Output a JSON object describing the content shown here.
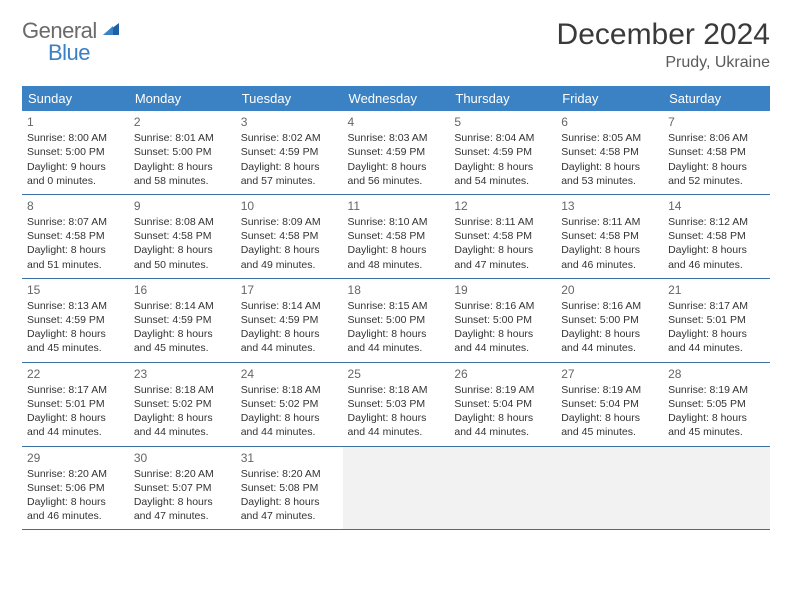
{
  "brand": {
    "part1": "General",
    "part2": "Blue"
  },
  "title": "December 2024",
  "location": "Prudy, Ukraine",
  "colors": {
    "header_bg": "#3b82c4",
    "header_text": "#ffffff",
    "row_border": "#3b6fa0",
    "empty_bg": "#f2f2f2",
    "page_bg": "#ffffff",
    "text": "#333333",
    "daynum": "#666666",
    "brand_gray": "#6a6a6a",
    "brand_blue": "#3b7fc4"
  },
  "typography": {
    "title_fontsize": 30,
    "location_fontsize": 16,
    "header_fontsize": 13,
    "cell_fontsize": 10.5,
    "daynum_fontsize": 12
  },
  "day_headers": [
    "Sunday",
    "Monday",
    "Tuesday",
    "Wednesday",
    "Thursday",
    "Friday",
    "Saturday"
  ],
  "weeks": [
    [
      {
        "n": "1",
        "sr": "Sunrise: 8:00 AM",
        "ss": "Sunset: 5:00 PM",
        "d1": "Daylight: 9 hours",
        "d2": "and 0 minutes."
      },
      {
        "n": "2",
        "sr": "Sunrise: 8:01 AM",
        "ss": "Sunset: 5:00 PM",
        "d1": "Daylight: 8 hours",
        "d2": "and 58 minutes."
      },
      {
        "n": "3",
        "sr": "Sunrise: 8:02 AM",
        "ss": "Sunset: 4:59 PM",
        "d1": "Daylight: 8 hours",
        "d2": "and 57 minutes."
      },
      {
        "n": "4",
        "sr": "Sunrise: 8:03 AM",
        "ss": "Sunset: 4:59 PM",
        "d1": "Daylight: 8 hours",
        "d2": "and 56 minutes."
      },
      {
        "n": "5",
        "sr": "Sunrise: 8:04 AM",
        "ss": "Sunset: 4:59 PM",
        "d1": "Daylight: 8 hours",
        "d2": "and 54 minutes."
      },
      {
        "n": "6",
        "sr": "Sunrise: 8:05 AM",
        "ss": "Sunset: 4:58 PM",
        "d1": "Daylight: 8 hours",
        "d2": "and 53 minutes."
      },
      {
        "n": "7",
        "sr": "Sunrise: 8:06 AM",
        "ss": "Sunset: 4:58 PM",
        "d1": "Daylight: 8 hours",
        "d2": "and 52 minutes."
      }
    ],
    [
      {
        "n": "8",
        "sr": "Sunrise: 8:07 AM",
        "ss": "Sunset: 4:58 PM",
        "d1": "Daylight: 8 hours",
        "d2": "and 51 minutes."
      },
      {
        "n": "9",
        "sr": "Sunrise: 8:08 AM",
        "ss": "Sunset: 4:58 PM",
        "d1": "Daylight: 8 hours",
        "d2": "and 50 minutes."
      },
      {
        "n": "10",
        "sr": "Sunrise: 8:09 AM",
        "ss": "Sunset: 4:58 PM",
        "d1": "Daylight: 8 hours",
        "d2": "and 49 minutes."
      },
      {
        "n": "11",
        "sr": "Sunrise: 8:10 AM",
        "ss": "Sunset: 4:58 PM",
        "d1": "Daylight: 8 hours",
        "d2": "and 48 minutes."
      },
      {
        "n": "12",
        "sr": "Sunrise: 8:11 AM",
        "ss": "Sunset: 4:58 PM",
        "d1": "Daylight: 8 hours",
        "d2": "and 47 minutes."
      },
      {
        "n": "13",
        "sr": "Sunrise: 8:11 AM",
        "ss": "Sunset: 4:58 PM",
        "d1": "Daylight: 8 hours",
        "d2": "and 46 minutes."
      },
      {
        "n": "14",
        "sr": "Sunrise: 8:12 AM",
        "ss": "Sunset: 4:58 PM",
        "d1": "Daylight: 8 hours",
        "d2": "and 46 minutes."
      }
    ],
    [
      {
        "n": "15",
        "sr": "Sunrise: 8:13 AM",
        "ss": "Sunset: 4:59 PM",
        "d1": "Daylight: 8 hours",
        "d2": "and 45 minutes."
      },
      {
        "n": "16",
        "sr": "Sunrise: 8:14 AM",
        "ss": "Sunset: 4:59 PM",
        "d1": "Daylight: 8 hours",
        "d2": "and 45 minutes."
      },
      {
        "n": "17",
        "sr": "Sunrise: 8:14 AM",
        "ss": "Sunset: 4:59 PM",
        "d1": "Daylight: 8 hours",
        "d2": "and 44 minutes."
      },
      {
        "n": "18",
        "sr": "Sunrise: 8:15 AM",
        "ss": "Sunset: 5:00 PM",
        "d1": "Daylight: 8 hours",
        "d2": "and 44 minutes."
      },
      {
        "n": "19",
        "sr": "Sunrise: 8:16 AM",
        "ss": "Sunset: 5:00 PM",
        "d1": "Daylight: 8 hours",
        "d2": "and 44 minutes."
      },
      {
        "n": "20",
        "sr": "Sunrise: 8:16 AM",
        "ss": "Sunset: 5:00 PM",
        "d1": "Daylight: 8 hours",
        "d2": "and 44 minutes."
      },
      {
        "n": "21",
        "sr": "Sunrise: 8:17 AM",
        "ss": "Sunset: 5:01 PM",
        "d1": "Daylight: 8 hours",
        "d2": "and 44 minutes."
      }
    ],
    [
      {
        "n": "22",
        "sr": "Sunrise: 8:17 AM",
        "ss": "Sunset: 5:01 PM",
        "d1": "Daylight: 8 hours",
        "d2": "and 44 minutes."
      },
      {
        "n": "23",
        "sr": "Sunrise: 8:18 AM",
        "ss": "Sunset: 5:02 PM",
        "d1": "Daylight: 8 hours",
        "d2": "and 44 minutes."
      },
      {
        "n": "24",
        "sr": "Sunrise: 8:18 AM",
        "ss": "Sunset: 5:02 PM",
        "d1": "Daylight: 8 hours",
        "d2": "and 44 minutes."
      },
      {
        "n": "25",
        "sr": "Sunrise: 8:18 AM",
        "ss": "Sunset: 5:03 PM",
        "d1": "Daylight: 8 hours",
        "d2": "and 44 minutes."
      },
      {
        "n": "26",
        "sr": "Sunrise: 8:19 AM",
        "ss": "Sunset: 5:04 PM",
        "d1": "Daylight: 8 hours",
        "d2": "and 44 minutes."
      },
      {
        "n": "27",
        "sr": "Sunrise: 8:19 AM",
        "ss": "Sunset: 5:04 PM",
        "d1": "Daylight: 8 hours",
        "d2": "and 45 minutes."
      },
      {
        "n": "28",
        "sr": "Sunrise: 8:19 AM",
        "ss": "Sunset: 5:05 PM",
        "d1": "Daylight: 8 hours",
        "d2": "and 45 minutes."
      }
    ],
    [
      {
        "n": "29",
        "sr": "Sunrise: 8:20 AM",
        "ss": "Sunset: 5:06 PM",
        "d1": "Daylight: 8 hours",
        "d2": "and 46 minutes."
      },
      {
        "n": "30",
        "sr": "Sunrise: 8:20 AM",
        "ss": "Sunset: 5:07 PM",
        "d1": "Daylight: 8 hours",
        "d2": "and 47 minutes."
      },
      {
        "n": "31",
        "sr": "Sunrise: 8:20 AM",
        "ss": "Sunset: 5:08 PM",
        "d1": "Daylight: 8 hours",
        "d2": "and 47 minutes."
      },
      null,
      null,
      null,
      null
    ]
  ]
}
